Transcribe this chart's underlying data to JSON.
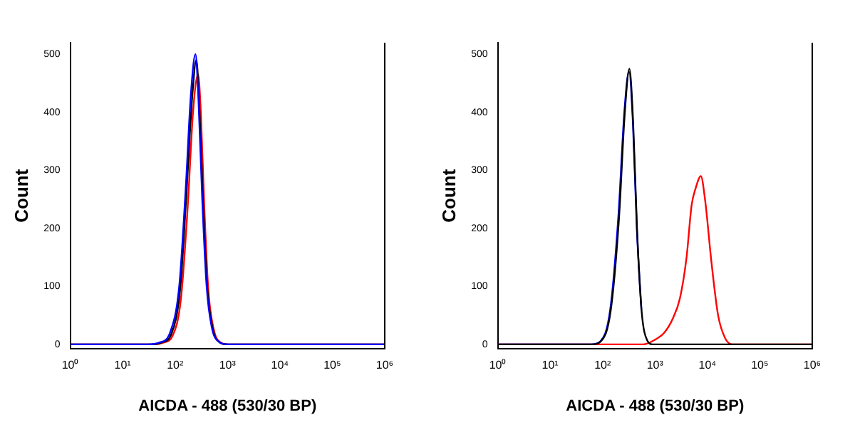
{
  "chart_data": [
    {
      "type": "line",
      "xlabel": "AICDA - 488 (530/30 BP)",
      "ylabel": "Count",
      "log": "x",
      "marker": "none",
      "grid": false,
      "xlim": [
        1,
        1000000
      ],
      "xticks": [
        {
          "value": 1,
          "label": "10⁰"
        },
        {
          "value": 10,
          "label": "10¹"
        },
        {
          "value": 100,
          "label": "10²"
        },
        {
          "value": 1000,
          "label": "10³"
        },
        {
          "value": 10000,
          "label": "10⁴"
        },
        {
          "value": 100000,
          "label": "10⁵"
        },
        {
          "value": 1000000,
          "label": "10⁶"
        }
      ],
      "ylim": [
        -8,
        520
      ],
      "yticks": [
        0,
        100,
        200,
        300,
        400,
        500
      ],
      "series": [
        {
          "color": "#0000ff",
          "x": [
            1,
            30,
            50,
            80,
            120,
            160,
            200,
            245,
            280,
            330,
            400,
            500,
            700,
            1000,
            1000000
          ],
          "values": [
            0,
            0,
            3,
            20,
            100,
            270,
            430,
            500,
            420,
            250,
            100,
            30,
            4,
            0,
            0
          ]
        },
        {
          "color": "#000000",
          "x": [
            1,
            35,
            55,
            85,
            125,
            165,
            210,
            255,
            290,
            340,
            410,
            520,
            720,
            1000,
            1000000
          ],
          "values": [
            0,
            0,
            3,
            18,
            95,
            260,
            420,
            490,
            410,
            250,
            100,
            28,
            3,
            0,
            0
          ]
        },
        {
          "color": "#ff0000",
          "x": [
            1,
            40,
            60,
            90,
            130,
            175,
            220,
            275,
            310,
            360,
            430,
            550,
            750,
            1050,
            1000000
          ],
          "values": [
            0,
            0,
            3,
            15,
            80,
            240,
            400,
            465,
            400,
            240,
            95,
            25,
            3,
            0,
            0
          ]
        }
      ]
    },
    {
      "type": "line",
      "xlabel": "AICDA - 488 (530/30 BP)",
      "ylabel": "Count",
      "log": "x",
      "marker": "none",
      "grid": false,
      "xlim": [
        1,
        1000000
      ],
      "xticks": [
        {
          "value": 1,
          "label": "10⁰"
        },
        {
          "value": 10,
          "label": "10¹"
        },
        {
          "value": 100,
          "label": "10²"
        },
        {
          "value": 1000,
          "label": "10³"
        },
        {
          "value": 10000,
          "label": "10⁴"
        },
        {
          "value": 100000,
          "label": "10⁵"
        },
        {
          "value": 1000000,
          "label": "10⁶"
        }
      ],
      "ylim": [
        -8,
        520
      ],
      "yticks": [
        0,
        100,
        200,
        300,
        400,
        500
      ],
      "series": [
        {
          "color": "#000000",
          "x": [
            1,
            62,
            92,
            143,
            205,
            265,
            325,
            385,
            455,
            555,
            710,
            910,
            1000000
          ],
          "values": [
            0,
            0,
            5,
            58,
            215,
            398,
            475,
            378,
            198,
            58,
            7,
            0,
            0
          ]
        },
        {
          "color": "#0000ff",
          "x": [
            1,
            60,
            90,
            140,
            200,
            260,
            320,
            380,
            450,
            550
          ],
          "values": [
            0,
            0,
            5,
            60,
            220,
            400,
            470,
            380,
            200,
            60
          ]
        },
        {
          "color": "#ff0000",
          "x": [
            1,
            600,
            1000,
            1500,
            2200,
            3000,
            4000,
            5000,
            6000,
            7500,
            9000,
            12000,
            16000,
            22000,
            30000,
            1000000
          ],
          "values": [
            0,
            0,
            8,
            20,
            45,
            80,
            150,
            240,
            270,
            290,
            250,
            140,
            50,
            10,
            0,
            0
          ]
        }
      ]
    }
  ]
}
